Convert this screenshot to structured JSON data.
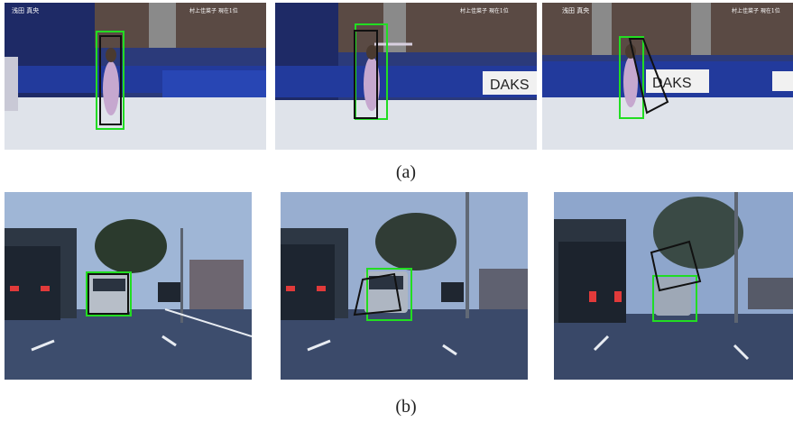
{
  "row_a": {
    "caption": "(a)",
    "panels": [
      {
        "overlay_text_left": "浅田 真央",
        "overlay_text_right": "村上佳菜子 現在1位",
        "banner": ""
      },
      {
        "overlay_text_left": "",
        "overlay_text_right": "村上佳菜子 現在1位",
        "banner": "DAKS"
      },
      {
        "overlay_text_left": "浅田 真央",
        "overlay_text_right": "村上佳菜子 現在1位",
        "banner": "DAKS"
      }
    ]
  },
  "row_b": {
    "caption": "(b)"
  },
  "colors": {
    "ground_truth_box": "#22dd22",
    "tracker_box": "#111111"
  }
}
